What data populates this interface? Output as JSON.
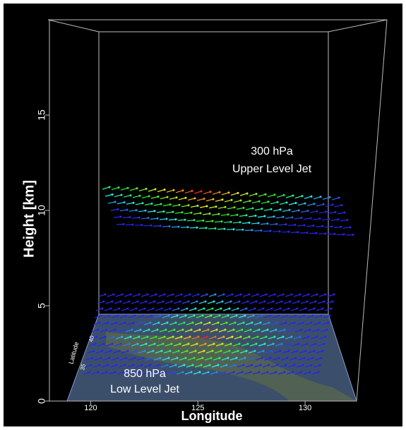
{
  "chart_data": {
    "type": "vector-3d",
    "ylabel": "Height [km]",
    "xlabel": "Longitude",
    "zlabel": "Latitude",
    "ylim": [
      0,
      20
    ],
    "yticks": [
      0,
      5,
      10,
      15
    ],
    "xlim": [
      118.9,
      132.4
    ],
    "xticks": [
      120,
      125,
      130
    ],
    "zticks": [
      35,
      40
    ],
    "annotations": [
      {
        "lines": [
          "300 hPa",
          "Upper Level Jet"
        ]
      },
      {
        "lines": [
          "850 hPa",
          "Low Level Jet"
        ]
      }
    ]
  }
}
